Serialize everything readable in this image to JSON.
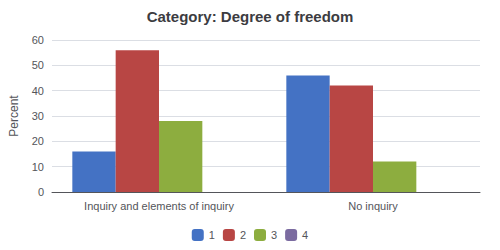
{
  "chart_data": {
    "type": "bar",
    "title": "Category: Degree of freedom",
    "ylabel": "Percent",
    "categories": [
      "Inquiry and elements of inquiry",
      "No inquiry"
    ],
    "series": [
      {
        "name": "1",
        "color": "#4472C4",
        "values": [
          16,
          46
        ]
      },
      {
        "name": "2",
        "color": "#B84644",
        "values": [
          56,
          42
        ]
      },
      {
        "name": "3",
        "color": "#8DAD3F",
        "values": [
          28,
          12
        ]
      },
      {
        "name": "4",
        "color": "#7B6BA0",
        "values": [
          0,
          0
        ]
      }
    ],
    "ylim": [
      0,
      60
    ],
    "yticks": [
      0,
      10,
      20,
      30,
      40,
      50,
      60
    ],
    "grid": true,
    "legend": "bottom"
  }
}
